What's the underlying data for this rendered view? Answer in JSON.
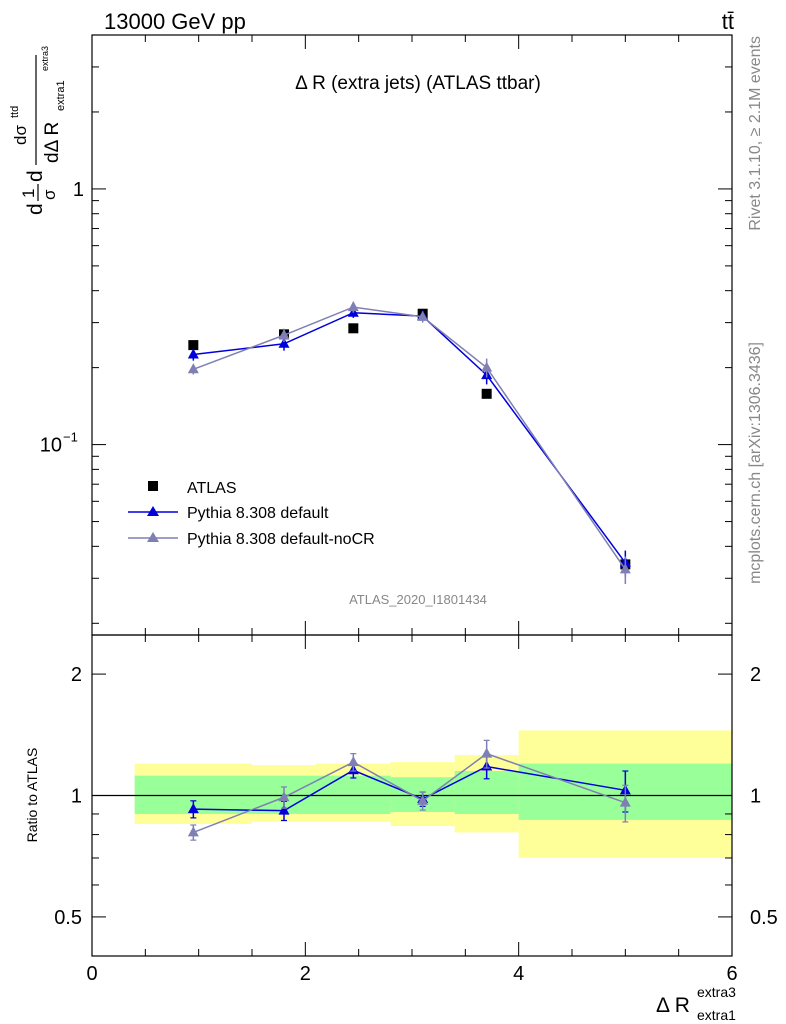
{
  "header": {
    "energy_label": "13000 GeV pp",
    "process_label": "tt̄"
  },
  "side_text": {
    "rivet": "Rivet 3.1.10, ≥ 2.1M events",
    "mcplots": "mcplots.cern.ch [arXiv:1306.3436]"
  },
  "colors": {
    "data": "#000000",
    "pythia_default": "#0000dd",
    "pythia_nocr": "#7f7fb4",
    "band_inner": "#99ff99",
    "band_outer": "#ffff99"
  },
  "chart_data": [
    {
      "type": "scatter",
      "title": "Δ R (extra jets) (ATLAS ttbar)",
      "analysis_label": "ATLAS_2020_I1801434",
      "ylabel": "dσ dσttd / σ dΔ R_extra1^extra3",
      "ylabel_parts": {
        "a": "d",
        "b": "1",
        "c": "σ",
        "d": "d",
        "e": "dσ",
        "f": "ttd",
        "g": "dΔ R",
        "h": "extra1",
        "i": "extra3"
      },
      "yscale": "log",
      "ylim": [
        0.018,
        4.0
      ],
      "yticks": [
        {
          "value": 1,
          "label": "1"
        },
        {
          "value": 0.1,
          "label": "10",
          "exp": "−1"
        }
      ],
      "xlim": [
        0,
        6
      ],
      "legend_position": "bottom-left",
      "series": [
        {
          "name": "ATLAS",
          "marker": "square",
          "x": [
            0.95,
            1.8,
            2.45,
            3.1,
            3.7,
            5.0
          ],
          "y": [
            0.245,
            0.27,
            0.285,
            0.325,
            0.158,
            0.034
          ]
        },
        {
          "name": "Pythia 8.308 default",
          "marker": "triangle",
          "x": [
            0.95,
            1.8,
            2.45,
            3.1,
            3.7,
            5.0
          ],
          "y": [
            0.225,
            0.248,
            0.328,
            0.318,
            0.187,
            0.0345
          ],
          "err": [
            0.012,
            0.015,
            0.015,
            0.013,
            0.015,
            0.004
          ]
        },
        {
          "name": "Pythia 8.308 default-noCR",
          "marker": "triangle",
          "x": [
            0.95,
            1.8,
            2.45,
            3.1,
            3.7,
            5.0
          ],
          "y": [
            0.197,
            0.268,
            0.345,
            0.316,
            0.2,
            0.0325
          ],
          "err": [
            0.009,
            0.016,
            0.017,
            0.016,
            0.017,
            0.004
          ]
        }
      ]
    },
    {
      "type": "scatter",
      "ylabel": "Ratio to ATLAS",
      "xlabel": "Δ R",
      "xlabel_sub": "extra1",
      "xlabel_sup": "extra3",
      "xlim": [
        0,
        6
      ],
      "xticks": [
        0,
        2,
        4,
        6
      ],
      "yscale": "log",
      "ylim": [
        0.4,
        2.5
      ],
      "yticks": [
        0.5,
        1,
        2
      ],
      "reference_line": 1,
      "bands": [
        {
          "x0": 0.4,
          "x1": 1.5,
          "inner": [
            0.9,
            1.12
          ],
          "outer": [
            0.85,
            1.2
          ]
        },
        {
          "x0": 1.5,
          "x1": 2.1,
          "inner": [
            0.9,
            1.12
          ],
          "outer": [
            0.86,
            1.19
          ]
        },
        {
          "x0": 2.1,
          "x1": 2.8,
          "inner": [
            0.9,
            1.12
          ],
          "outer": [
            0.86,
            1.2
          ]
        },
        {
          "x0": 2.8,
          "x1": 3.4,
          "inner": [
            0.91,
            1.11
          ],
          "outer": [
            0.84,
            1.21
          ]
        },
        {
          "x0": 3.4,
          "x1": 4.0,
          "inner": [
            0.9,
            1.15
          ],
          "outer": [
            0.81,
            1.26
          ]
        },
        {
          "x0": 4.0,
          "x1": 6.0,
          "inner": [
            0.87,
            1.2
          ],
          "outer": [
            0.7,
            1.45
          ]
        }
      ],
      "series": [
        {
          "name": "Pythia 8.308 default",
          "x": [
            0.95,
            1.8,
            2.45,
            3.1,
            3.7,
            5.0
          ],
          "y": [
            0.925,
            0.917,
            1.155,
            0.98,
            1.18,
            1.03
          ],
          "err": [
            0.045,
            0.05,
            0.05,
            0.04,
            0.08,
            0.12
          ]
        },
        {
          "name": "Pythia 8.308 default-noCR",
          "x": [
            0.95,
            1.8,
            2.45,
            3.1,
            3.7,
            5.0
          ],
          "y": [
            0.81,
            0.99,
            1.21,
            0.97,
            1.27,
            0.96
          ],
          "err": [
            0.035,
            0.06,
            0.06,
            0.05,
            0.1,
            0.1
          ]
        }
      ]
    }
  ]
}
